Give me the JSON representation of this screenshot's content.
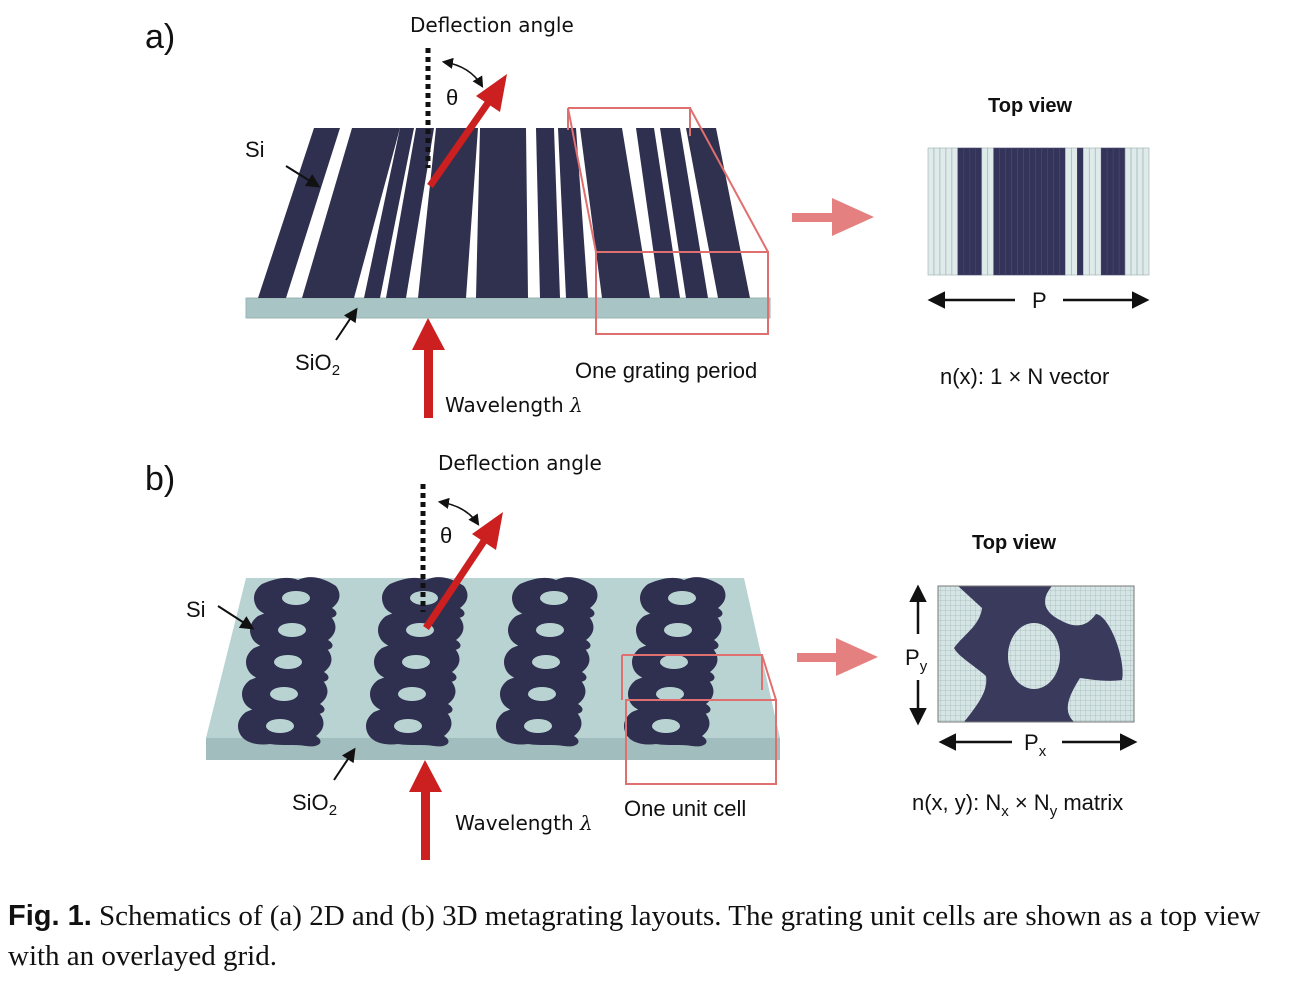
{
  "panel_a": {
    "label": "a)",
    "deflection_label": "Deflection angle",
    "theta": "θ",
    "si_label": "Si",
    "sio2_label": "SiO",
    "sio2_sub": "2",
    "period_label": "One grating period",
    "wavelength_label": "Wavelength ",
    "lambda": "λ",
    "top_view_title": "Top view",
    "period_symbol": "P",
    "vector_label": "n(x):  1 × N vector"
  },
  "panel_b": {
    "label": "b)",
    "deflection_label": "Deflection angle",
    "theta": "θ",
    "si_label": "Si",
    "sio2_label": "SiO",
    "sio2_sub": "2",
    "cell_label": "One unit cell",
    "wavelength_label": "Wavelength ",
    "lambda": "λ",
    "top_view_title": "Top view",
    "py_symbol": "P",
    "py_sub": "y",
    "px_symbol": "P",
    "px_sub": "x",
    "matrix_prefix": "n(x, y): N",
    "matrix_x_sub": "x",
    "matrix_mid": " × N",
    "matrix_y_sub": "y",
    "matrix_suffix": " matrix"
  },
  "caption": {
    "fig_label": "Fig. 1.",
    "text": " Schematics of (a) 2D and (b) 3D metagrating layouts.  The grating unit cells are shown as a top view with an overlayed grid."
  },
  "colors": {
    "silicon": "#2f2f4f",
    "silica": "#b7d1d1",
    "arrow_red": "#cc1f1f",
    "outline_pink": "#e07070",
    "pointer_pink": "#e58080"
  }
}
